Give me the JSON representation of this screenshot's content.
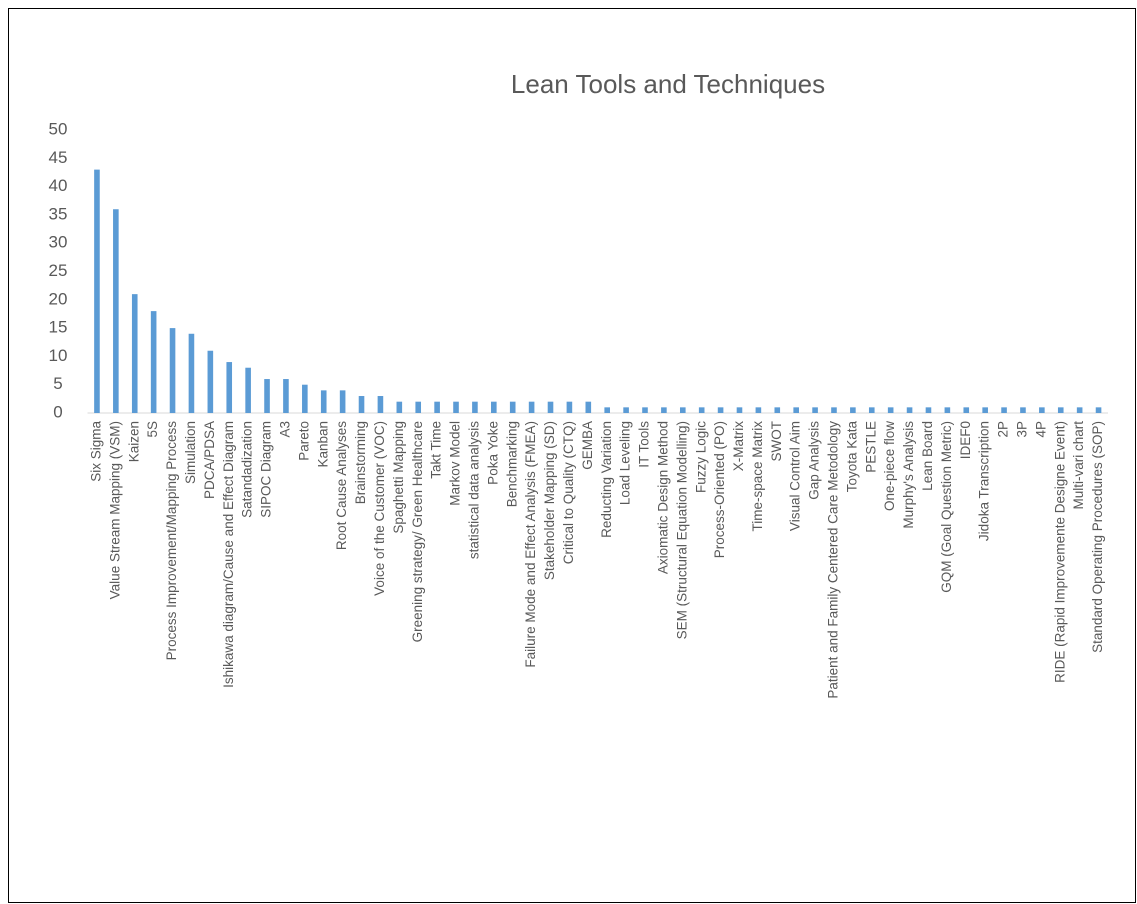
{
  "chart_data": {
    "type": "bar",
    "title": "Lean Tools and Techniques",
    "categories": [
      "Six Sigma",
      "Value Stream Mapping (VSM)",
      "Kaizen",
      "5S",
      "Process Improvement/Mapping Process",
      "Simulation",
      "PDCA/PDSA",
      "Ishikawa diagram/Cause and  Effect Diagram",
      "Satandadization",
      "SIPOC Diagram",
      "A3",
      "Pareto",
      "Kanban",
      "Root Cause Analyses",
      "Brainstorming",
      "Voice of the Customer (VOC)",
      "Spaghetti Mapping",
      "Greening strategy/ Green Healthcare",
      "Takt Time",
      "Markov Model",
      "statistical data analysis",
      "Poka Yoke",
      "Benchmarking",
      "Failure Mode and Effect Analysis (FMEA)",
      "Stakeholder Mapping (SD)",
      "Critical to Quality (CTQ)",
      "GEMBA",
      "Reducting Variation",
      "Load Leveling",
      "IT Tools",
      "Axiomatic Design Method",
      "SEM (Structural Equation Modelling)",
      "Fuzzy Logic",
      "Process-Oriented (PO)",
      "X-Matrix",
      "Time-space Matrix",
      "SWOT",
      "Visual Control Aim",
      "Gap Analysis",
      "Patient and Family Centered Care Metodology",
      "Toyota Kata",
      "PESTLE",
      "One-piece flow",
      "Murphy's Analysis",
      "Lean Board",
      "GQM (Goal Question Metric)",
      "IDEF0",
      "Jidoka Transcription",
      "2P",
      "3P",
      "4P",
      "RIDE (Rapid Improvemente Designe Event)",
      "Multi-vari chart",
      "Standard Operating Procedures (SOP)"
    ],
    "values": [
      43,
      36,
      21,
      18,
      15,
      14,
      11,
      9,
      8,
      6,
      6,
      5,
      4,
      4,
      3,
      3,
      2,
      2,
      2,
      2,
      2,
      2,
      2,
      2,
      2,
      2,
      2,
      1,
      1,
      1,
      1,
      1,
      1,
      1,
      1,
      1,
      1,
      1,
      1,
      1,
      1,
      1,
      1,
      1,
      1,
      1,
      1,
      1,
      1,
      1,
      1,
      1,
      1,
      1
    ],
    "color": "#5b9bd5",
    "ylim": [
      0,
      50
    ],
    "yticks": [
      0,
      5,
      10,
      15,
      20,
      25,
      30,
      35,
      40,
      45,
      50
    ],
    "grid": false
  }
}
